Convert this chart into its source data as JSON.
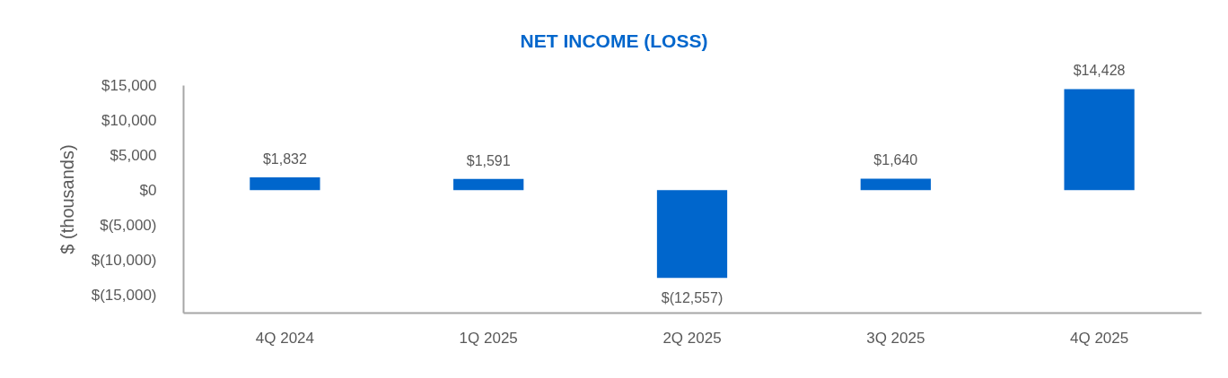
{
  "chart_data": {
    "type": "bar",
    "title": "NET INCOME (LOSS)",
    "ylabel": "$ (thousands)",
    "categories": [
      "4Q 2024",
      "1Q 2025",
      "2Q 2025",
      "3Q 2025",
      "4Q 2025"
    ],
    "values": [
      1832,
      1591,
      -12557,
      1640,
      14428
    ],
    "color": "#0066cc",
    "value_labels": [
      "$1,832",
      "$1,591",
      "$(12,557)",
      "$1,640",
      "$14,428"
    ],
    "ylim": [
      -17500,
      15000
    ],
    "yticks": [
      {
        "value": -15000,
        "label": "$(15,000)"
      },
      {
        "value": -10000,
        "label": "$(10,000)"
      },
      {
        "value": -5000,
        "label": "$(5,000)"
      },
      {
        "value": 0,
        "label": "$0"
      },
      {
        "value": 5000,
        "label": "$5,000"
      },
      {
        "value": 10000,
        "label": "$10,000"
      },
      {
        "value": 15000,
        "label": "$15,000"
      }
    ]
  }
}
